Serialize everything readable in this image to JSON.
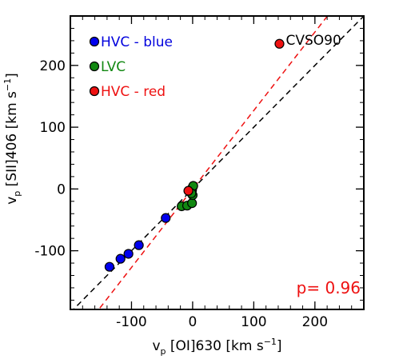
{
  "chart_data": {
    "type": "scatter",
    "xlabel": {
      "base": "v",
      "sub": "p",
      "main": " [OI]630 [km s",
      "sup": "−1",
      "end": "]"
    },
    "ylabel": {
      "base": "v",
      "sub": "p",
      "main": " [SII]406 [km s",
      "sup": "−1",
      "end": "]"
    },
    "xlim": [
      -200,
      280
    ],
    "ylim": [
      -195,
      280
    ],
    "xticks": [
      {
        "value": -100,
        "label": "-100"
      },
      {
        "value": 0,
        "label": "0"
      },
      {
        "value": 100,
        "label": "100"
      },
      {
        "value": 200,
        "label": "200"
      }
    ],
    "yticks": [
      {
        "value": -100,
        "label": "-100"
      },
      {
        "value": 0,
        "label": "0"
      },
      {
        "value": 100,
        "label": "100"
      },
      {
        "value": 200,
        "label": "200"
      }
    ],
    "xminor_step": 20,
    "yminor_step": 20,
    "series": [
      {
        "name": "HVC - blue",
        "color": "#0000ee",
        "text_color": "#0000dd",
        "points": [
          [
            -136,
            -126
          ],
          [
            -118,
            -113
          ],
          [
            -105,
            -105
          ],
          [
            -88,
            -91
          ],
          [
            -44,
            -47
          ]
        ]
      },
      {
        "name": "LVC",
        "color": "#118811",
        "text_color": "#118811",
        "points": [
          [
            -18,
            -28
          ],
          [
            -9,
            -27
          ],
          [
            -1,
            -23
          ],
          [
            0,
            -10
          ],
          [
            -1,
            -2
          ],
          [
            0,
            3
          ],
          [
            1,
            5
          ],
          [
            -2,
            -7
          ]
        ]
      },
      {
        "name": "HVC - red",
        "color": "#ee1111",
        "text_color": "#ee1111",
        "points": [
          [
            -7,
            -3
          ],
          [
            142,
            235
          ]
        ]
      }
    ],
    "lines": [
      {
        "label": "one-to-one",
        "color": "#000000",
        "slope": 1.0,
        "intercept": 0
      },
      {
        "label": "fit",
        "color": "#ee1111",
        "slope": 1.27,
        "intercept": 0
      }
    ],
    "annotations": [
      {
        "text": "CVSO90",
        "x": 142,
        "y": 235,
        "color": "#000000"
      }
    ],
    "correlation_label": "p= 0.96",
    "correlation_color": "#ee1111",
    "legend_position": "top-left",
    "grid": false
  }
}
